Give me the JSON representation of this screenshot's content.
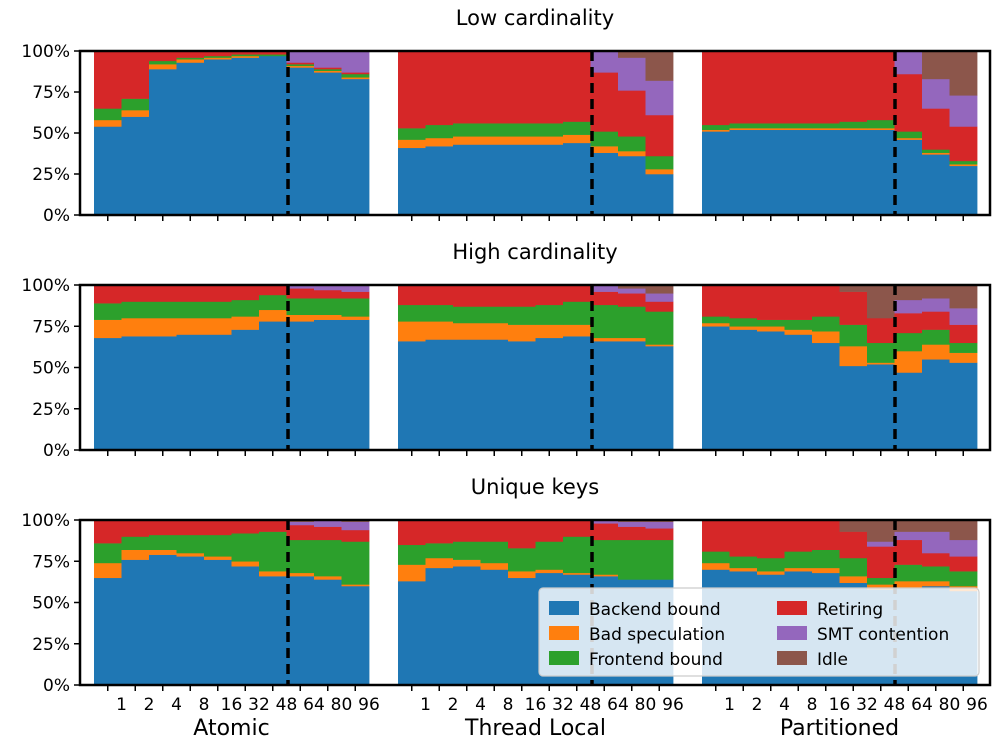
{
  "chart_data": {
    "type": "bar",
    "stacked": true,
    "colors": {
      "Backend bound": "#1f77b4",
      "Bad speculation": "#ff7f0e",
      "Frontend bound": "#2ca02c",
      "Retiring": "#d62728",
      "SMT contention": "#9467bd",
      "Idle": "#8c564b"
    },
    "series_order": [
      "Backend bound",
      "Bad speculation",
      "Frontend bound",
      "Retiring",
      "SMT contention",
      "Idle"
    ],
    "legend": {
      "placement": "lower-right (bottom panel)",
      "entries": [
        "Backend bound",
        "Bad speculation",
        "Frontend bound",
        "Retiring",
        "SMT contention",
        "Idle"
      ]
    },
    "groups": [
      "Atomic",
      "Thread Local",
      "Partitioned"
    ],
    "threads": [
      "1",
      "2",
      "4",
      "8",
      "16",
      "32",
      "48",
      "64",
      "80",
      "96"
    ],
    "divider_after_index": 6,
    "y_ticks": [
      "0%",
      "25%",
      "50%",
      "75%",
      "100%"
    ],
    "ylim": [
      0,
      100
    ],
    "panels": [
      {
        "title": "Low cardinality",
        "data": {
          "Atomic": [
            [
              54,
              4,
              7,
              35,
              0,
              0
            ],
            [
              60,
              4,
              7,
              29,
              0,
              0
            ],
            [
              89,
              3,
              2,
              6,
              0,
              0
            ],
            [
              93,
              2,
              1,
              4,
              0,
              0
            ],
            [
              95,
              1,
              1,
              3,
              0,
              0
            ],
            [
              96,
              1,
              1,
              2,
              0,
              0
            ],
            [
              97,
              0,
              1,
              2,
              0,
              0
            ],
            [
              90,
              1,
              1,
              1,
              7,
              0
            ],
            [
              87,
              1,
              1,
              1,
              10,
              0
            ],
            [
              83,
              1,
              2,
              1,
              13,
              0
            ]
          ],
          "Thread Local": [
            [
              41,
              5,
              7,
              47,
              0,
              0
            ],
            [
              42,
              5,
              8,
              45,
              0,
              0
            ],
            [
              43,
              5,
              8,
              44,
              0,
              0
            ],
            [
              43,
              5,
              8,
              44,
              0,
              0
            ],
            [
              43,
              5,
              8,
              44,
              0,
              0
            ],
            [
              43,
              5,
              8,
              44,
              0,
              0
            ],
            [
              44,
              5,
              8,
              43,
              0,
              0
            ],
            [
              38,
              4,
              9,
              36,
              13,
              0
            ],
            [
              36,
              3,
              9,
              28,
              20,
              4
            ],
            [
              25,
              3,
              8,
              25,
              21,
              18
            ]
          ],
          "Partitioned": [
            [
              51,
              1,
              3,
              45,
              0,
              0
            ],
            [
              52,
              1,
              3,
              44,
              0,
              0
            ],
            [
              52,
              1,
              3,
              44,
              0,
              0
            ],
            [
              52,
              1,
              3,
              44,
              0,
              0
            ],
            [
              52,
              1,
              3,
              44,
              0,
              0
            ],
            [
              52,
              1,
              4,
              43,
              0,
              0
            ],
            [
              52,
              1,
              5,
              42,
              0,
              0
            ],
            [
              46,
              1,
              4,
              35,
              14,
              0
            ],
            [
              37,
              1,
              2,
              25,
              18,
              17
            ],
            [
              30,
              1,
              2,
              21,
              19,
              27
            ]
          ]
        }
      },
      {
        "title": "High cardinality",
        "data": {
          "Atomic": [
            [
              68,
              11,
              10,
              11,
              0,
              0
            ],
            [
              69,
              11,
              10,
              10,
              0,
              0
            ],
            [
              69,
              11,
              10,
              10,
              0,
              0
            ],
            [
              70,
              10,
              10,
              10,
              0,
              0
            ],
            [
              70,
              10,
              10,
              10,
              0,
              0
            ],
            [
              73,
              8,
              10,
              9,
              0,
              0
            ],
            [
              78,
              7,
              9,
              6,
              0,
              0
            ],
            [
              78,
              4,
              10,
              6,
              2,
              0
            ],
            [
              79,
              3,
              10,
              5,
              3,
              0
            ],
            [
              79,
              2,
              11,
              4,
              4,
              0
            ]
          ],
          "Thread Local": [
            [
              66,
              12,
              10,
              12,
              0,
              0
            ],
            [
              67,
              11,
              10,
              12,
              0,
              0
            ],
            [
              67,
              10,
              10,
              13,
              0,
              0
            ],
            [
              67,
              10,
              10,
              13,
              0,
              0
            ],
            [
              66,
              10,
              11,
              13,
              0,
              0
            ],
            [
              68,
              8,
              12,
              12,
              0,
              0
            ],
            [
              69,
              7,
              14,
              10,
              0,
              0
            ],
            [
              66,
              2,
              20,
              8,
              4,
              0
            ],
            [
              66,
              2,
              19,
              8,
              3,
              2
            ],
            [
              63,
              1,
              20,
              6,
              5,
              5
            ]
          ],
          "Partitioned": [
            [
              75,
              2,
              4,
              19,
              0,
              0
            ],
            [
              73,
              2,
              5,
              20,
              0,
              0
            ],
            [
              72,
              3,
              4,
              21,
              0,
              0
            ],
            [
              70,
              3,
              6,
              21,
              0,
              0
            ],
            [
              65,
              7,
              9,
              19,
              0,
              0
            ],
            [
              51,
              12,
              13,
              20,
              0,
              4
            ],
            [
              52,
              1,
              12,
              15,
              0,
              20
            ],
            [
              47,
              13,
              11,
              12,
              8,
              9
            ],
            [
              55,
              9,
              9,
              11,
              8,
              8
            ],
            [
              53,
              6,
              6,
              11,
              10,
              14
            ]
          ]
        }
      },
      {
        "title": "Unique keys",
        "data": {
          "Atomic": [
            [
              65,
              9,
              12,
              14,
              0,
              0
            ],
            [
              76,
              6,
              8,
              10,
              0,
              0
            ],
            [
              79,
              3,
              9,
              9,
              0,
              0
            ],
            [
              78,
              2,
              11,
              9,
              0,
              0
            ],
            [
              76,
              2,
              13,
              9,
              0,
              0
            ],
            [
              72,
              3,
              17,
              8,
              0,
              0
            ],
            [
              66,
              3,
              24,
              7,
              0,
              0
            ],
            [
              66,
              2,
              20,
              9,
              2,
              1
            ],
            [
              64,
              2,
              22,
              8,
              4,
              0
            ],
            [
              60,
              1,
              26,
              7,
              5,
              1
            ]
          ],
          "Thread Local": [
            [
              63,
              10,
              12,
              15,
              0,
              0
            ],
            [
              71,
              6,
              9,
              14,
              0,
              0
            ],
            [
              72,
              4,
              11,
              13,
              0,
              0
            ],
            [
              70,
              4,
              13,
              13,
              0,
              0
            ],
            [
              65,
              4,
              14,
              17,
              0,
              0
            ],
            [
              68,
              2,
              17,
              13,
              0,
              0
            ],
            [
              67,
              1,
              22,
              10,
              0,
              0
            ],
            [
              66,
              1,
              21,
              10,
              2,
              0
            ],
            [
              64,
              0,
              24,
              8,
              3,
              1
            ],
            [
              64,
              0,
              24,
              7,
              4,
              1
            ]
          ],
          "Partitioned": [
            [
              70,
              4,
              7,
              19,
              0,
              0
            ],
            [
              69,
              2,
              7,
              22,
              0,
              0
            ],
            [
              67,
              2,
              8,
              23,
              0,
              0
            ],
            [
              69,
              2,
              10,
              19,
              0,
              0
            ],
            [
              68,
              3,
              11,
              18,
              0,
              0
            ],
            [
              62,
              4,
              11,
              16,
              0,
              7
            ],
            [
              58,
              3,
              4,
              19,
              3,
              13
            ],
            [
              59,
              4,
              10,
              15,
              5,
              7
            ],
            [
              60,
              3,
              9,
              8,
              13,
              7
            ],
            [
              57,
              3,
              9,
              9,
              10,
              12
            ]
          ]
        }
      }
    ]
  }
}
